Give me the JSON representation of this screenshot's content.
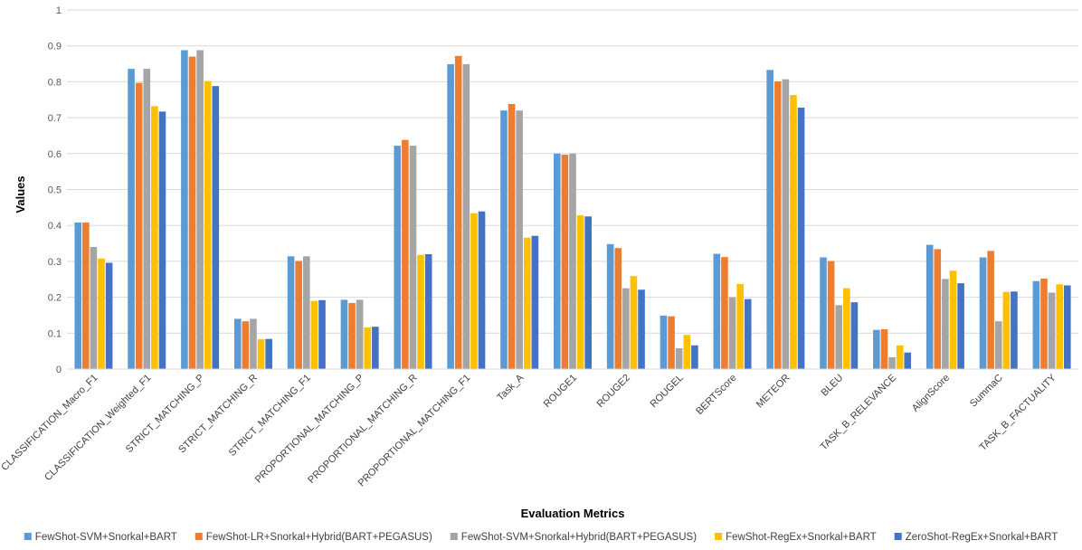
{
  "chart_data": {
    "type": "bar",
    "xlabel": "Evaluation Metrics",
    "ylabel": "Values",
    "ylim": [
      0,
      1
    ],
    "yticks": [
      "0",
      "0.1",
      "0.2",
      "0.3",
      "0.4",
      "0.5",
      "0.6",
      "0.7",
      "0.8",
      "0.9",
      "1"
    ],
    "grid": true,
    "legend_position": "bottom",
    "categories": [
      "CLASSIFICATION_Macro_F1",
      "CLASSIFICATION_Weighted_F1",
      "STRICT_MATCHING_P",
      "STRICT_MATCHING_R",
      "STRICT_MATCHING_F1",
      "PROPORTIONAL_MATCHING_P",
      "PROPORTIONAL_MATCHING_R",
      "PROPORTIONAL_MATCHING_F1",
      "Task_A",
      "ROUGE1",
      "ROUGE2",
      "ROUGEL",
      "BERTScore",
      "METEOR",
      "BLEU",
      "TASK_B_RELEVANCE",
      "AlignScore",
      "SummaC",
      "TASK_B_FACTUALITY"
    ],
    "series": [
      {
        "name": "FewShot-SVM+Snorkal+BART",
        "color": "#5B9BD5",
        "values": [
          0.408,
          0.836,
          0.888,
          0.14,
          0.314,
          0.193,
          0.622,
          0.849,
          0.72,
          0.6,
          0.348,
          0.149,
          0.321,
          0.833,
          0.311,
          0.109,
          0.346,
          0.311,
          0.245
        ]
      },
      {
        "name": "FewShot-LR+Snorkal+Hybrid(BART+PEGASUS)",
        "color": "#ED7D31",
        "values": [
          0.408,
          0.797,
          0.87,
          0.133,
          0.301,
          0.184,
          0.638,
          0.872,
          0.738,
          0.597,
          0.337,
          0.147,
          0.312,
          0.801,
          0.301,
          0.111,
          0.334,
          0.329,
          0.252
        ]
      },
      {
        "name": "FewShot-SVM+Snorkal+Hybrid(BART+PEGASUS)",
        "color": "#A5A5A5",
        "values": [
          0.34,
          0.836,
          0.888,
          0.14,
          0.314,
          0.193,
          0.622,
          0.849,
          0.72,
          0.6,
          0.225,
          0.058,
          0.2,
          0.807,
          0.178,
          0.033,
          0.251,
          0.133,
          0.213
        ]
      },
      {
        "name": "FewShot-RegEx+Snorkal+BART",
        "color": "#FFC000",
        "values": [
          0.308,
          0.732,
          0.802,
          0.083,
          0.19,
          0.116,
          0.318,
          0.434,
          0.366,
          0.428,
          0.259,
          0.095,
          0.237,
          0.763,
          0.225,
          0.066,
          0.274,
          0.215,
          0.236
        ]
      },
      {
        "name": "ZeroShot-RegEx+Snorkal+BART",
        "color": "#4472C4",
        "values": [
          0.296,
          0.717,
          0.788,
          0.084,
          0.192,
          0.118,
          0.32,
          0.439,
          0.371,
          0.425,
          0.221,
          0.066,
          0.195,
          0.728,
          0.186,
          0.046,
          0.239,
          0.216,
          0.233
        ]
      }
    ]
  }
}
